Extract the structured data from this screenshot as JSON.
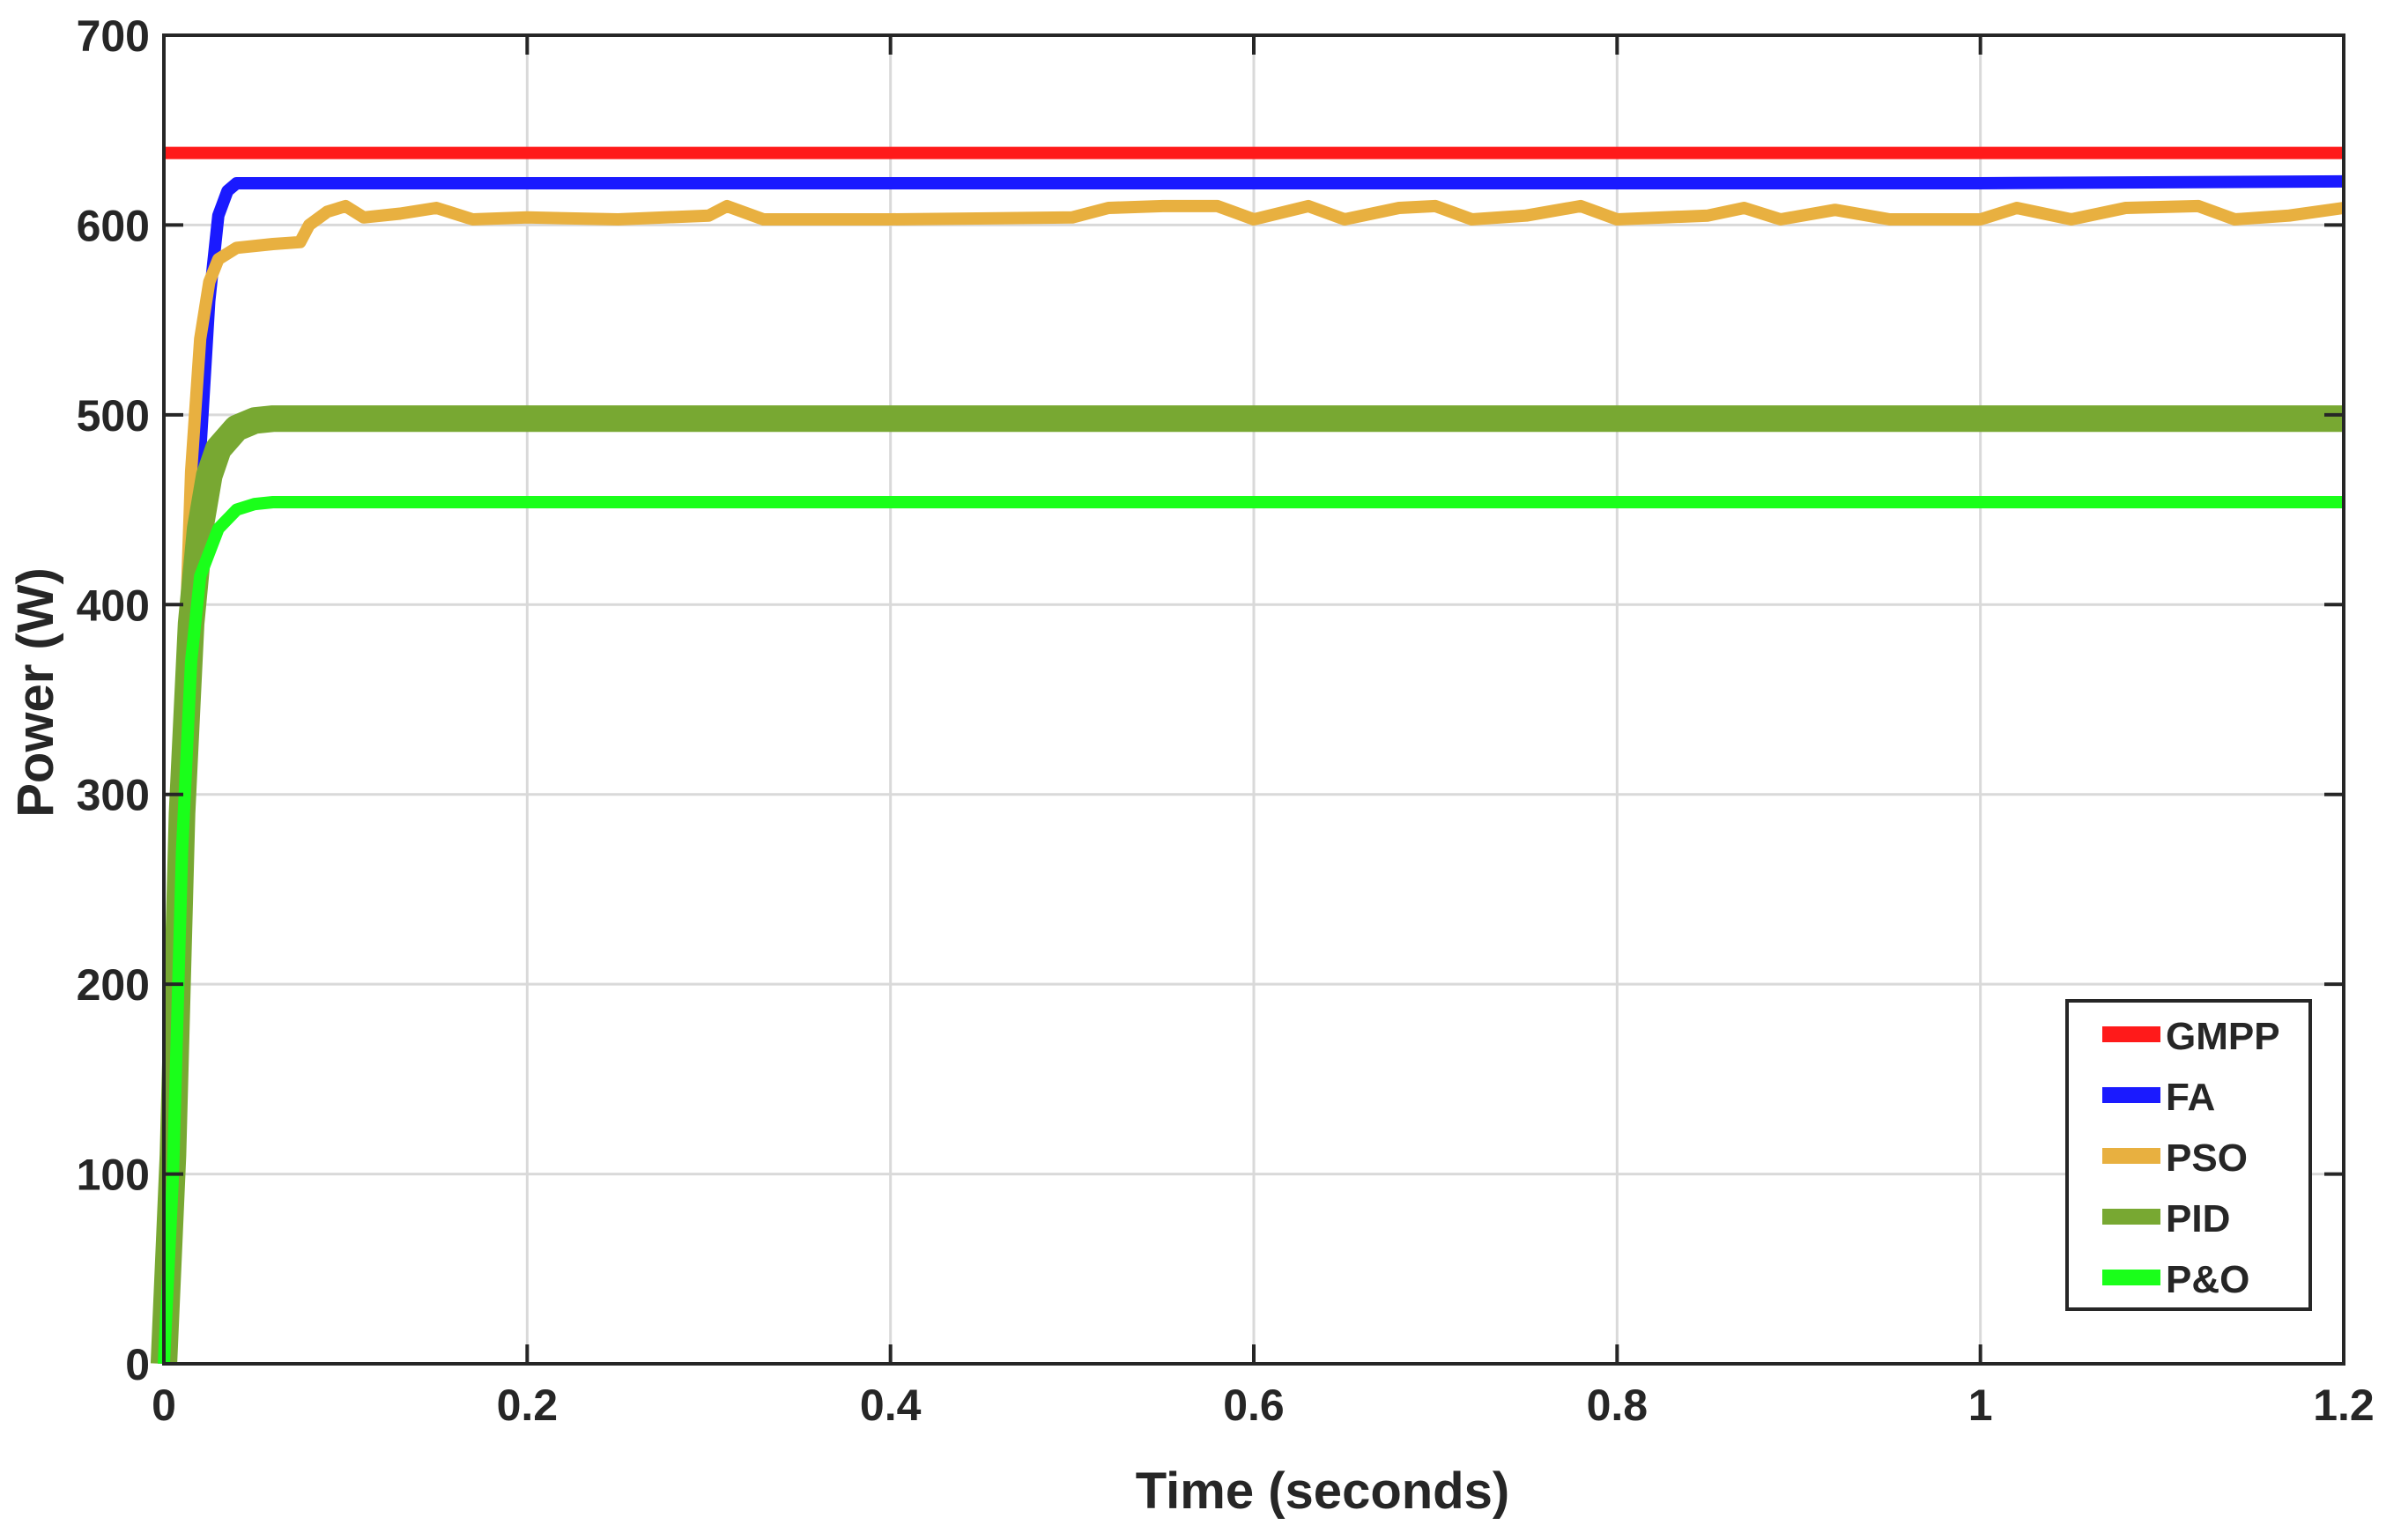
{
  "chart_data": {
    "type": "line",
    "title": "",
    "xlabel": "Time (seconds)",
    "ylabel": "Power (W)",
    "xlim": [
      0,
      1.2
    ],
    "ylim": [
      0,
      700
    ],
    "x_ticks": [
      0,
      0.2,
      0.4,
      0.6,
      0.8,
      1,
      1.2
    ],
    "x_tick_labels": [
      "0",
      "0.2",
      "0.4",
      "0.6",
      "0.8",
      "1",
      "1.2"
    ],
    "y_ticks": [
      0,
      100,
      200,
      300,
      400,
      500,
      600,
      700
    ],
    "y_tick_labels": [
      "0",
      "100",
      "200",
      "300",
      "400",
      "500",
      "600",
      "700"
    ],
    "grid": true,
    "legend_position": "bottom-right",
    "series": [
      {
        "name": "GMPP",
        "color": "#ff1a1a",
        "points": [
          [
            0,
            638
          ],
          [
            1.2,
            638
          ]
        ]
      },
      {
        "name": "FA",
        "color": "#1a1aff",
        "points": [
          [
            0,
            0
          ],
          [
            0.005,
            100
          ],
          [
            0.01,
            250
          ],
          [
            0.015,
            380
          ],
          [
            0.02,
            480
          ],
          [
            0.025,
            560
          ],
          [
            0.03,
            605
          ],
          [
            0.035,
            618
          ],
          [
            0.04,
            622
          ],
          [
            0.05,
            622
          ],
          [
            0.2,
            622
          ],
          [
            0.4,
            622
          ],
          [
            0.6,
            622
          ],
          [
            0.8,
            622
          ],
          [
            1.0,
            622
          ],
          [
            1.2,
            623
          ]
        ]
      },
      {
        "name": "PSO",
        "color": "#e8b040",
        "points": [
          [
            0,
            0
          ],
          [
            0.005,
            120
          ],
          [
            0.01,
            330
          ],
          [
            0.015,
            470
          ],
          [
            0.02,
            540
          ],
          [
            0.025,
            570
          ],
          [
            0.03,
            582
          ],
          [
            0.04,
            588
          ],
          [
            0.06,
            590
          ],
          [
            0.075,
            591
          ],
          [
            0.08,
            600
          ],
          [
            0.09,
            607
          ],
          [
            0.1,
            610
          ],
          [
            0.11,
            604
          ],
          [
            0.13,
            606
          ],
          [
            0.15,
            609
          ],
          [
            0.17,
            603
          ],
          [
            0.2,
            604
          ],
          [
            0.25,
            603
          ],
          [
            0.3,
            605
          ],
          [
            0.31,
            610
          ],
          [
            0.33,
            603
          ],
          [
            0.4,
            603
          ],
          [
            0.5,
            604
          ],
          [
            0.52,
            609
          ],
          [
            0.55,
            610
          ],
          [
            0.58,
            610
          ],
          [
            0.6,
            603
          ],
          [
            0.63,
            610
          ],
          [
            0.65,
            603
          ],
          [
            0.68,
            609
          ],
          [
            0.7,
            610
          ],
          [
            0.72,
            603
          ],
          [
            0.75,
            605
          ],
          [
            0.78,
            610
          ],
          [
            0.8,
            603
          ],
          [
            0.85,
            605
          ],
          [
            0.87,
            609
          ],
          [
            0.89,
            603
          ],
          [
            0.92,
            608
          ],
          [
            0.95,
            603
          ],
          [
            1.0,
            603
          ],
          [
            1.02,
            609
          ],
          [
            1.05,
            603
          ],
          [
            1.08,
            609
          ],
          [
            1.12,
            610
          ],
          [
            1.14,
            603
          ],
          [
            1.17,
            605
          ],
          [
            1.2,
            609
          ]
        ]
      },
      {
        "name": "PID",
        "color": "#78a832",
        "band_width": 14,
        "points": [
          [
            0,
            0
          ],
          [
            0.005,
            110
          ],
          [
            0.01,
            290
          ],
          [
            0.015,
            390
          ],
          [
            0.02,
            440
          ],
          [
            0.025,
            468
          ],
          [
            0.03,
            482
          ],
          [
            0.04,
            493
          ],
          [
            0.05,
            497
          ],
          [
            0.06,
            498
          ],
          [
            0.2,
            498
          ],
          [
            0.4,
            498
          ],
          [
            0.6,
            498
          ],
          [
            0.8,
            498
          ],
          [
            1.0,
            498
          ],
          [
            1.2,
            498
          ]
        ]
      },
      {
        "name": "P&O",
        "color": "#1aff1a",
        "points": [
          [
            0,
            0
          ],
          [
            0.005,
            100
          ],
          [
            0.01,
            270
          ],
          [
            0.015,
            370
          ],
          [
            0.02,
            415
          ],
          [
            0.03,
            440
          ],
          [
            0.04,
            450
          ],
          [
            0.05,
            453
          ],
          [
            0.06,
            454
          ],
          [
            0.2,
            454
          ],
          [
            0.4,
            454
          ],
          [
            0.6,
            454
          ],
          [
            0.8,
            454
          ],
          [
            1.0,
            454
          ],
          [
            1.2,
            454
          ]
        ]
      }
    ]
  }
}
